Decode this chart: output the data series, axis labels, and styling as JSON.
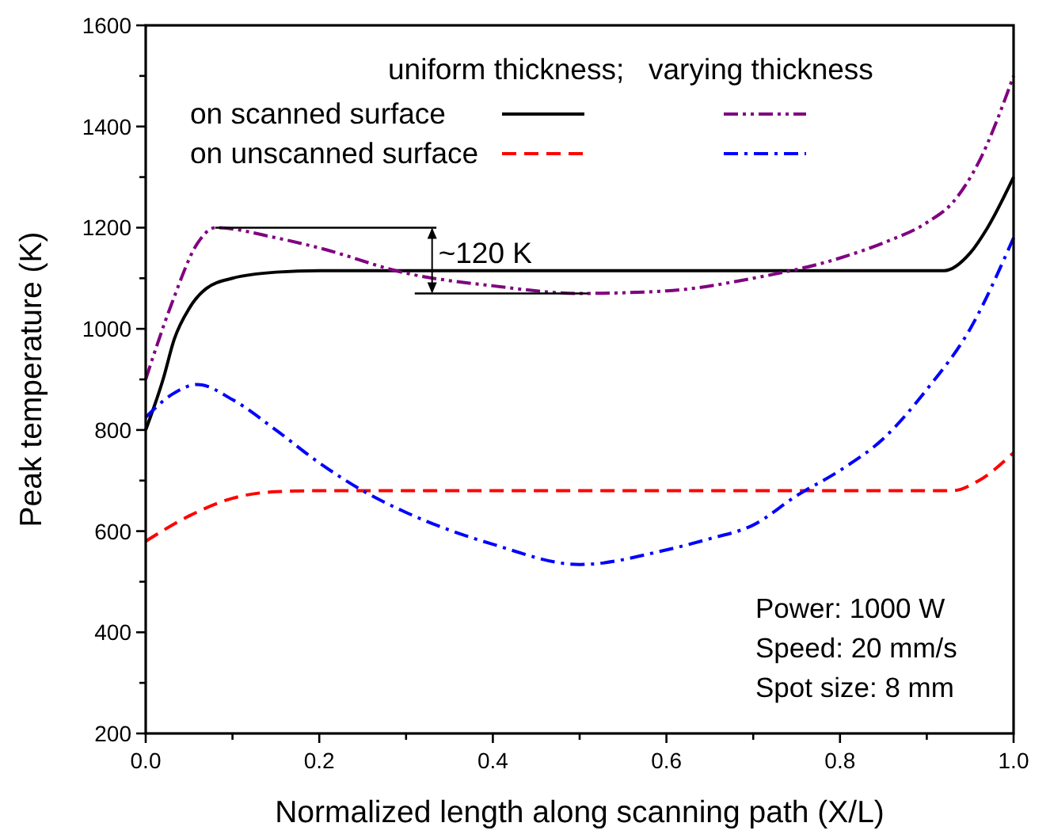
{
  "chart_data": {
    "type": "line",
    "xlabel": "Normalized length along scanning path (X/L)",
    "ylabel": "Peak temperature (K)",
    "legend_title": "uniform thickness;   varying thickness",
    "xlim": [
      0,
      1
    ],
    "ylim": [
      200,
      1600
    ],
    "xticks": [
      {
        "value": 0,
        "label": "0.0"
      },
      {
        "value": 0.1,
        "label": null
      },
      {
        "value": 0.2,
        "label": "0.2"
      },
      {
        "value": 0.3,
        "label": null
      },
      {
        "value": 0.4,
        "label": "0.4"
      },
      {
        "value": 0.5,
        "label": null
      },
      {
        "value": 0.6,
        "label": "0.6"
      },
      {
        "value": 0.7,
        "label": null
      },
      {
        "value": 0.8,
        "label": "0.8"
      },
      {
        "value": 0.9,
        "label": null
      },
      {
        "value": 1,
        "label": "1.0"
      }
    ],
    "yticks": [
      200,
      {
        "value": 300,
        "label": null
      },
      400,
      {
        "value": 500,
        "label": null
      },
      600,
      {
        "value": 700,
        "label": null
      },
      800,
      {
        "value": 900,
        "label": null
      },
      1000,
      {
        "value": 1100,
        "label": null
      },
      1200,
      {
        "value": 1300,
        "label": null
      },
      1400,
      {
        "value": 1500,
        "label": null
      },
      1600
    ],
    "legend": "top",
    "grid": false,
    "series": [
      {
        "name": "on scanned surface",
        "color": "#000000",
        "line_style": "solid",
        "x": [
          0,
          0.02,
          0.033,
          0.05,
          0.07,
          0.1,
          0.15,
          0.2,
          0.5,
          0.92,
          0.95,
          0.97,
          1.0
        ],
        "values": [
          800,
          900,
          980,
          1040,
          1080,
          1100,
          1112,
          1115,
          1115,
          1115,
          1150,
          1200,
          1300
        ]
      },
      {
        "name": "on unscanned surface",
        "color": "#ff0000",
        "line_style": "dashed",
        "x": [
          0,
          0.05,
          0.1,
          0.15,
          0.2,
          0.5,
          0.93,
          0.96,
          1.0
        ],
        "values": [
          580,
          630,
          665,
          678,
          680,
          680,
          680,
          700,
          755
        ]
      },
      {
        "color": "#800080",
        "line_style": "dashdotdot",
        "x": [
          0,
          0.03,
          0.06,
          0.08,
          0.15,
          0.2,
          0.3,
          0.4,
          0.5,
          0.6,
          0.7,
          0.8,
          0.85,
          0.9,
          0.93,
          0.96,
          1.0
        ],
        "values": [
          900,
          1050,
          1170,
          1200,
          1180,
          1160,
          1110,
          1085,
          1070,
          1075,
          1100,
          1140,
          1170,
          1210,
          1250,
          1330,
          1500
        ]
      },
      {
        "color": "#0000ff",
        "line_style": "dashdot",
        "x": [
          0,
          0.03,
          0.06,
          0.1,
          0.15,
          0.2,
          0.25,
          0.3,
          0.4,
          0.5,
          0.6,
          0.65,
          0.7,
          0.75,
          0.8,
          0.85,
          0.9,
          0.95,
          1.0
        ],
        "values": [
          825,
          870,
          890,
          860,
          800,
          735,
          680,
          637,
          574,
          534,
          563,
          585,
          612,
          670,
          720,
          783,
          880,
          1000,
          1180
        ]
      }
    ],
    "annotations": [
      {
        "text": "~120 K",
        "x": 0.08,
        "y": 1200
      },
      "Power: 1000 W",
      "Speed: 20 mm/s",
      "Spot size: 8 mm"
    ]
  }
}
